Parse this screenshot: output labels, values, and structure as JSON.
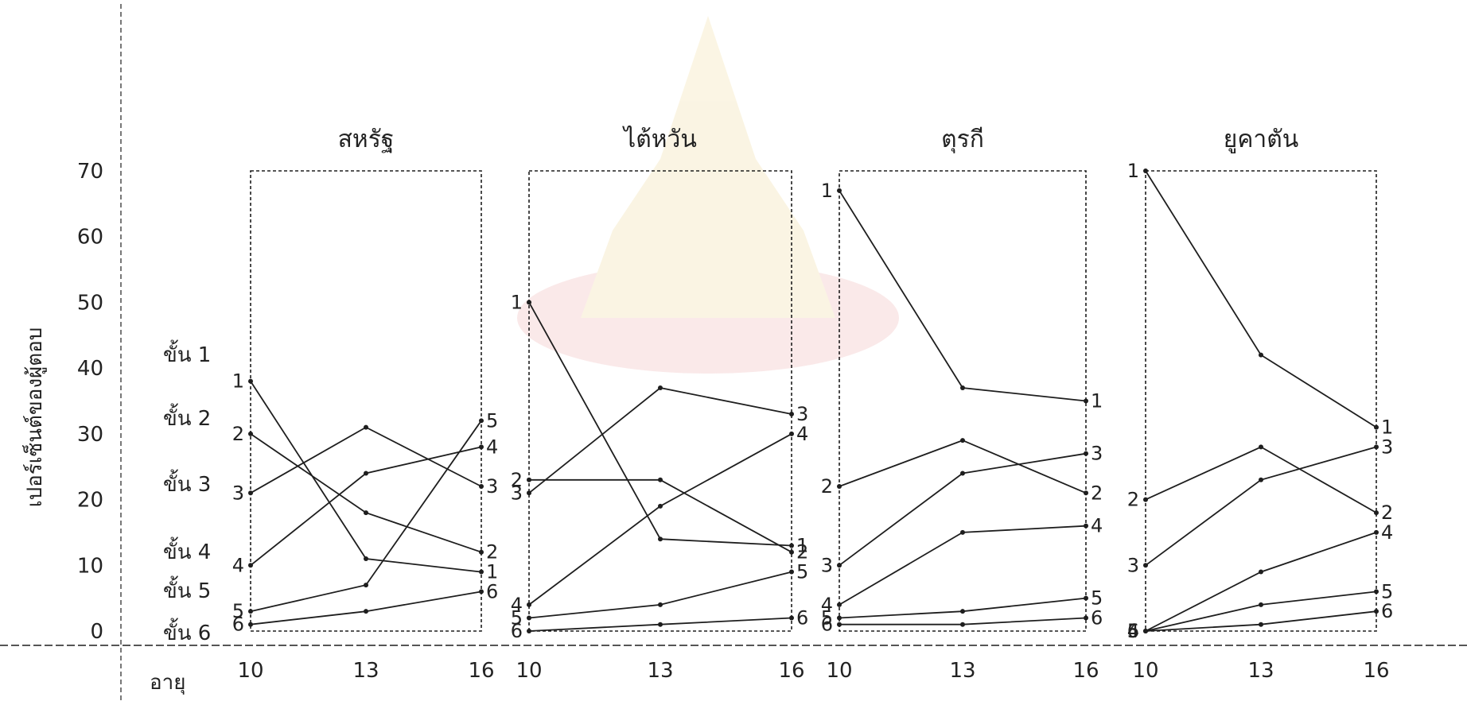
{
  "chart_data": {
    "type": "line",
    "ylabel": "เปอร์เซ็นต์ของผู้ตอบ",
    "xlabel": "อายุ",
    "ylim": [
      0,
      70
    ],
    "yticks": [
      "0",
      "10",
      "20",
      "30",
      "40",
      "50",
      "60",
      "70"
    ],
    "stage_labels": [
      "ขั้น 1",
      "ขั้น 2",
      "ขั้น 3",
      "ขั้น 4",
      "ขั้น 5",
      "ขั้น 6"
    ],
    "x": [
      10,
      13,
      16
    ],
    "x_tick_labels": [
      "10",
      "13",
      "16"
    ],
    "panels": [
      {
        "title": "สหรัฐ",
        "series": [
          {
            "name": "1",
            "values": [
              38,
              11,
              9
            ]
          },
          {
            "name": "2",
            "values": [
              30,
              18,
              12
            ]
          },
          {
            "name": "3",
            "values": [
              21,
              31,
              22
            ]
          },
          {
            "name": "4",
            "values": [
              10,
              24,
              28
            ]
          },
          {
            "name": "5",
            "values": [
              3,
              7,
              32
            ]
          },
          {
            "name": "6",
            "values": [
              1,
              3,
              6
            ]
          }
        ]
      },
      {
        "title": "ไต้หวัน",
        "series": [
          {
            "name": "1",
            "values": [
              50,
              14,
              13
            ]
          },
          {
            "name": "2",
            "values": [
              23,
              23,
              12
            ]
          },
          {
            "name": "3",
            "values": [
              21,
              37,
              33
            ]
          },
          {
            "name": "4",
            "values": [
              4,
              19,
              30
            ]
          },
          {
            "name": "5",
            "values": [
              2,
              4,
              9
            ]
          },
          {
            "name": "6",
            "values": [
              0,
              1,
              2
            ]
          }
        ]
      },
      {
        "title": "ตุรกี",
        "series": [
          {
            "name": "1",
            "values": [
              67,
              37,
              35
            ]
          },
          {
            "name": "2",
            "values": [
              22,
              29,
              21
            ]
          },
          {
            "name": "3",
            "values": [
              10,
              24,
              27
            ]
          },
          {
            "name": "4",
            "values": [
              4,
              15,
              16
            ]
          },
          {
            "name": "5",
            "values": [
              2,
              3,
              5
            ]
          },
          {
            "name": "6",
            "values": [
              1,
              1,
              2
            ]
          }
        ]
      },
      {
        "title": "ยูคาตัน",
        "series": [
          {
            "name": "1",
            "values": [
              70,
              42,
              31
            ]
          },
          {
            "name": "2",
            "values": [
              20,
              28,
              18
            ]
          },
          {
            "name": "3",
            "values": [
              10,
              23,
              28
            ]
          },
          {
            "name": "4",
            "values": [
              0,
              9,
              15
            ]
          },
          {
            "name": "5",
            "values": [
              0,
              4,
              6
            ]
          },
          {
            "name": "6",
            "values": [
              0,
              1,
              3
            ]
          }
        ]
      }
    ],
    "grid": false,
    "legend": "none"
  }
}
